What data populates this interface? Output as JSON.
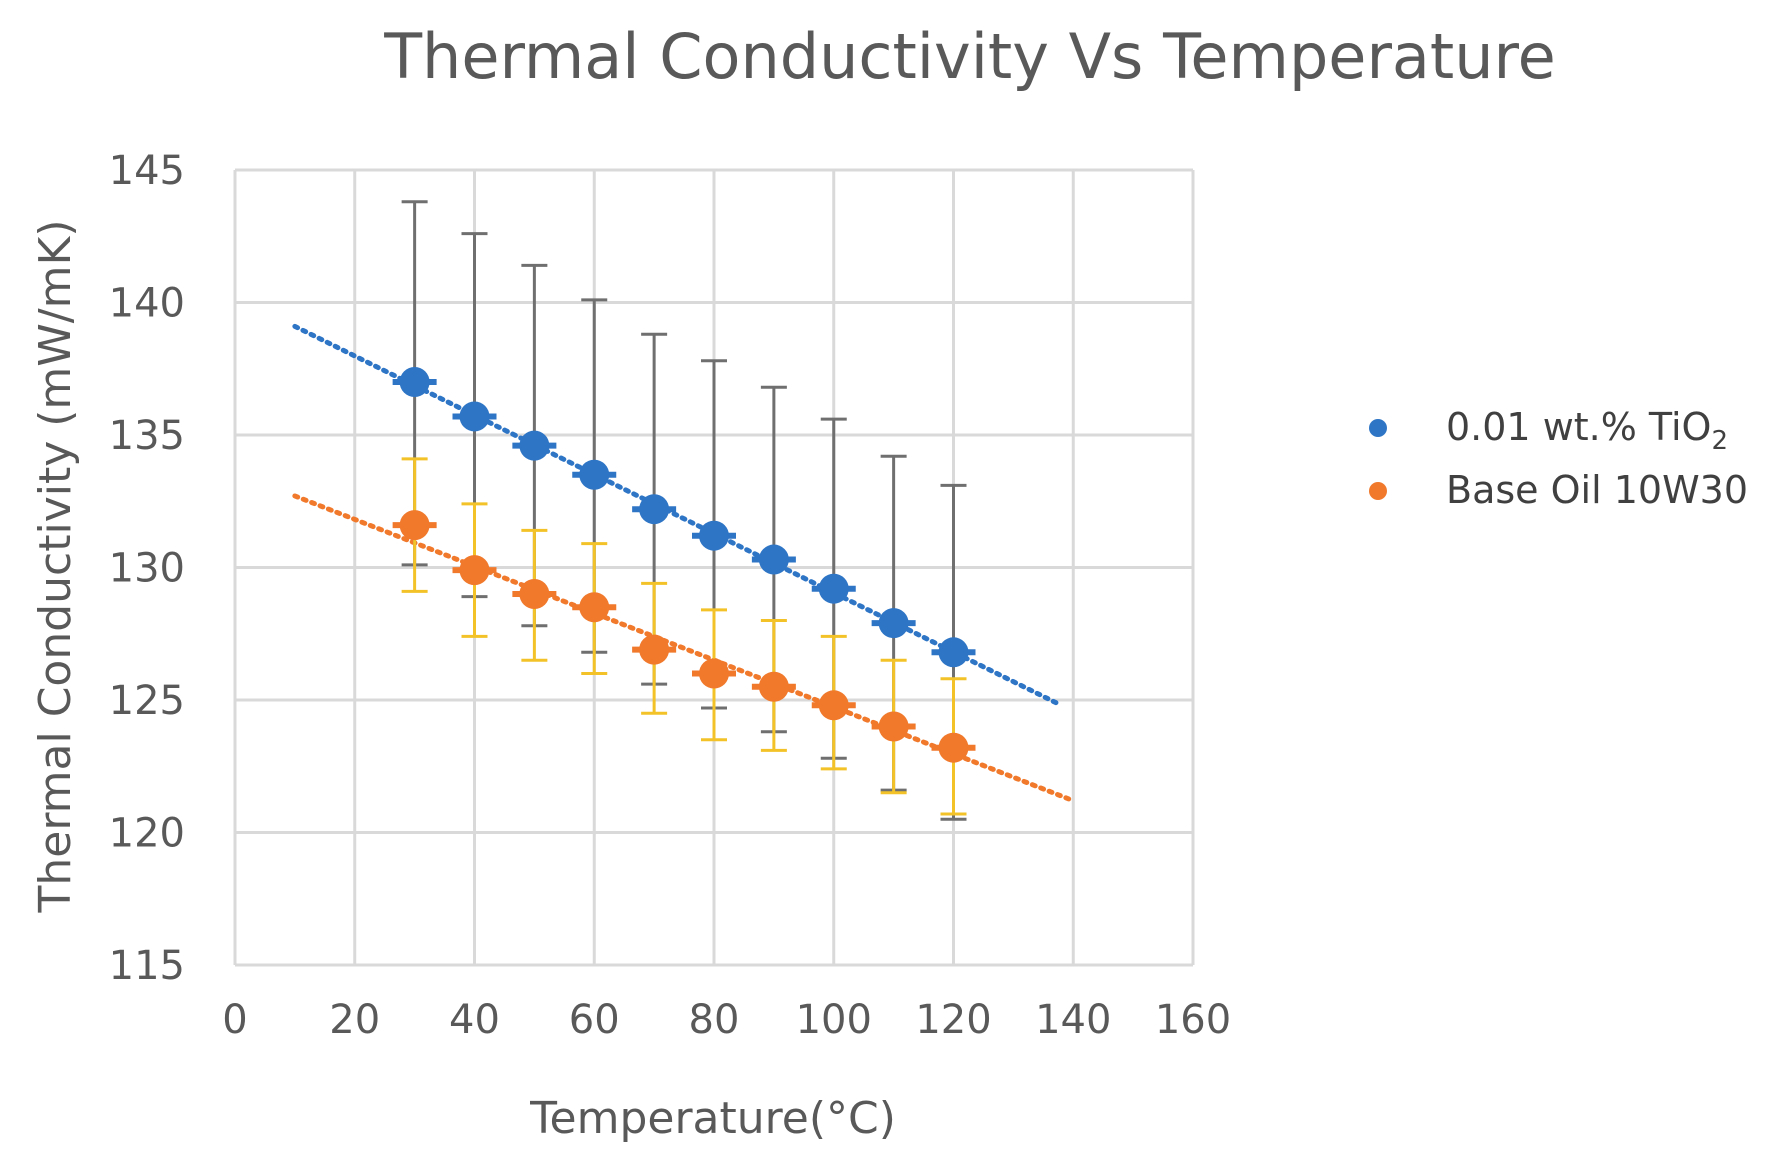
{
  "chart_data": {
    "type": "scatter",
    "title": "Thermal Conductivity Vs Temperature",
    "xlabel": "Temperature(°C)",
    "ylabel": "Thermal Conductivity (mW/mK)",
    "xlim": [
      0,
      160
    ],
    "ylim": [
      115,
      145
    ],
    "xticks": [
      0,
      20,
      40,
      60,
      80,
      100,
      120,
      140,
      160
    ],
    "yticks": [
      115,
      120,
      125,
      130,
      135,
      140,
      145
    ],
    "grid": true,
    "legend_position": "right",
    "series": [
      {
        "name": "0.01 wt.% TiO",
        "name_subscript": "2",
        "color": "#2e75c6",
        "errorbar_color": "#6f6f6f",
        "x": [
          30,
          40,
          50,
          60,
          70,
          80,
          90,
          100,
          110,
          120
        ],
        "y": [
          137.0,
          135.7,
          134.6,
          133.5,
          132.2,
          131.2,
          130.3,
          129.2,
          127.9,
          126.8
        ],
        "error_upper": [
          143.8,
          142.6,
          141.4,
          140.1,
          138.8,
          137.8,
          136.8,
          135.6,
          134.2,
          133.1
        ],
        "error_lower": [
          130.1,
          128.9,
          127.8,
          126.8,
          125.6,
          124.7,
          123.8,
          122.8,
          121.6,
          120.5
        ],
        "trendline": {
          "x": [
            10,
            138
          ],
          "y": [
            139.1,
            124.8
          ],
          "style": "dotted"
        }
      },
      {
        "name": "Base Oil 10W30",
        "name_subscript": "",
        "color": "#f0792c",
        "errorbar_color": "#f2c228",
        "x": [
          30,
          40,
          50,
          60,
          70,
          80,
          90,
          100,
          110,
          120
        ],
        "y": [
          131.6,
          129.9,
          129.0,
          128.5,
          126.9,
          126.0,
          125.5,
          124.8,
          124.0,
          123.2
        ],
        "error_upper": [
          134.1,
          132.4,
          131.4,
          130.9,
          129.4,
          128.4,
          128.0,
          127.4,
          126.5,
          125.8
        ],
        "error_lower": [
          129.1,
          127.4,
          126.5,
          126.0,
          124.5,
          123.5,
          123.1,
          122.4,
          121.5,
          120.7
        ],
        "trendline": {
          "x": [
            10,
            140
          ],
          "y": [
            132.7,
            121.2
          ],
          "style": "dotted"
        }
      }
    ]
  }
}
